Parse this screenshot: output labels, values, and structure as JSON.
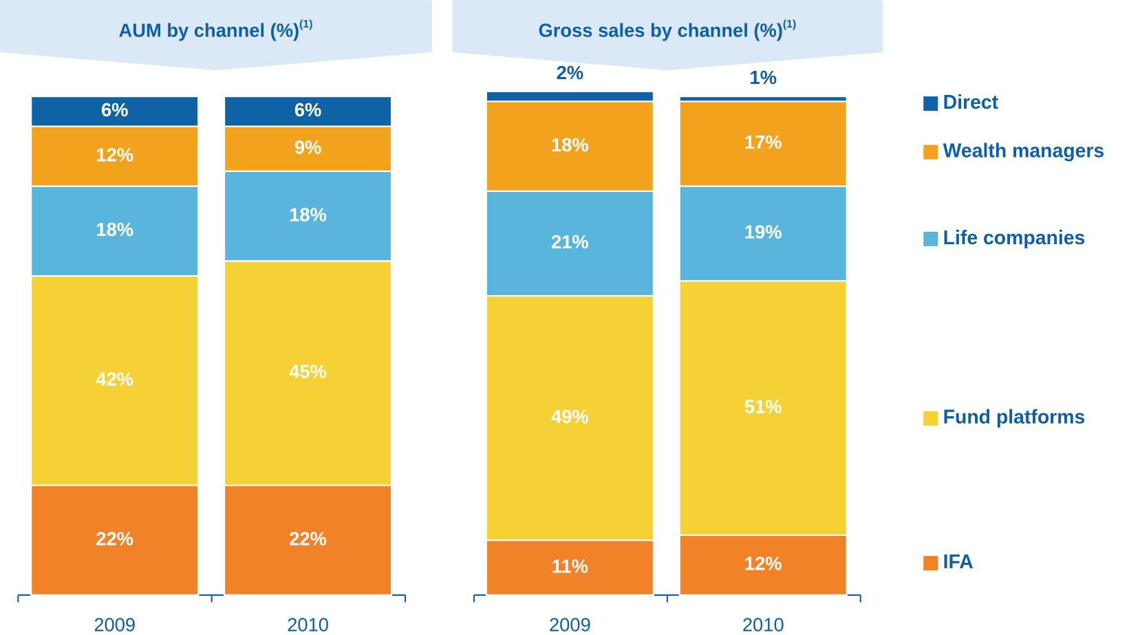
{
  "chart_data": [
    {
      "type": "bar",
      "stacked": true,
      "title": "AUM by channel (%)",
      "title_note": "(1)",
      "categories": [
        "2009",
        "2010"
      ],
      "ylim": [
        0,
        100
      ],
      "series": [
        {
          "color": "#f28228",
          "values": [
            22,
            22
          ],
          "value_labels": [
            "22%",
            "22%"
          ]
        },
        {
          "color": "#f5d136",
          "values": [
            42,
            45
          ],
          "value_labels": [
            "42%",
            "45%"
          ]
        },
        {
          "color": "#5ab5dd",
          "values": [
            18,
            18
          ],
          "value_labels": [
            "18%",
            "18%"
          ]
        },
        {
          "color": "#f2a21d",
          "values": [
            12,
            9
          ],
          "value_labels": [
            "12%",
            "9%"
          ]
        },
        {
          "color": "#0f62a6",
          "values": [
            6,
            6
          ],
          "value_labels": [
            "6%",
            "6%"
          ]
        }
      ]
    },
    {
      "type": "bar",
      "stacked": true,
      "title": "Gross sales by channel (%)",
      "title_note": "(1)",
      "categories": [
        "2009",
        "2010"
      ],
      "ylim": [
        0,
        100
      ],
      "series": [
        {
          "name": "IFA",
          "color": "#f28228",
          "values": [
            11,
            12
          ],
          "value_labels": [
            "11%",
            "12%"
          ]
        },
        {
          "name": "Fund platforms",
          "color": "#f5d136",
          "values": [
            49,
            51
          ],
          "value_labels": [
            "49%",
            "51%"
          ]
        },
        {
          "name": "Life companies",
          "color": "#5ab5dd",
          "values": [
            21,
            19
          ],
          "value_labels": [
            "21%",
            "19%"
          ]
        },
        {
          "name": "Wealth managers",
          "color": "#f2a21d",
          "values": [
            18,
            17
          ],
          "value_labels": [
            "18%",
            "17%"
          ]
        },
        {
          "name": "Direct",
          "color": "#0f62a6",
          "values": [
            2,
            1
          ],
          "value_labels": [
            "2%",
            "1%"
          ]
        }
      ]
    }
  ]
}
